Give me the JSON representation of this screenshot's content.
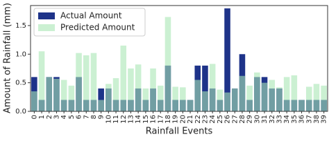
{
  "chart_data": {
    "type": "bar",
    "xlabel": "Rainfall Events",
    "ylabel": "Amount of Rainfall (mm)",
    "categories": [
      "0",
      "1",
      "2",
      "3",
      "4",
      "5",
      "6",
      "7",
      "8",
      "9",
      "10",
      "11",
      "12",
      "13",
      "14",
      "15",
      "16",
      "17",
      "18",
      "19",
      "20",
      "21",
      "22",
      "23",
      "24",
      "25",
      "26",
      "27",
      "28",
      "29",
      "30",
      "31",
      "32",
      "33",
      "34",
      "35",
      "36",
      "37",
      "38",
      "39"
    ],
    "series": [
      {
        "name": "Actual Amount",
        "color": "#1e3389",
        "values": [
          0.6,
          0.2,
          0.6,
          0.6,
          0.2,
          0.2,
          0.6,
          0.2,
          0.2,
          0.4,
          0.4,
          0.2,
          0.2,
          0.2,
          0.4,
          0.2,
          0.4,
          0.2,
          0.8,
          0.2,
          0.2,
          0.2,
          0.8,
          0.8,
          0.4,
          0.2,
          1.8,
          0.4,
          1.0,
          0.2,
          0.6,
          0.6,
          0.4,
          0.4,
          0.2,
          0.2,
          0.2,
          0.2,
          0.2,
          0.2
        ]
      },
      {
        "name": "Predicted Amount",
        "color": "rgba(168,230,180,0.6)",
        "values": [
          0.35,
          1.05,
          0.6,
          0.57,
          0.55,
          0.45,
          1.02,
          0.98,
          1.02,
          0.2,
          0.48,
          0.58,
          1.15,
          0.75,
          0.82,
          0.4,
          0.75,
          0.45,
          1.65,
          0.43,
          0.42,
          0.2,
          0.55,
          0.35,
          0.83,
          0.38,
          0.33,
          0.4,
          0.62,
          0.45,
          0.68,
          0.5,
          0.55,
          0.42,
          0.6,
          0.63,
          0.2,
          0.43,
          0.48,
          0.45
        ]
      }
    ],
    "ylim": [
      0,
      1.85
    ],
    "yticks": [
      {
        "value": 0,
        "label": "0.0"
      },
      {
        "value": 0.5,
        "label": "0.5"
      },
      {
        "value": 1,
        "label": "1.0"
      },
      {
        "value": 1.5,
        "label": "1.5"
      }
    ],
    "legend": "upper-left"
  }
}
